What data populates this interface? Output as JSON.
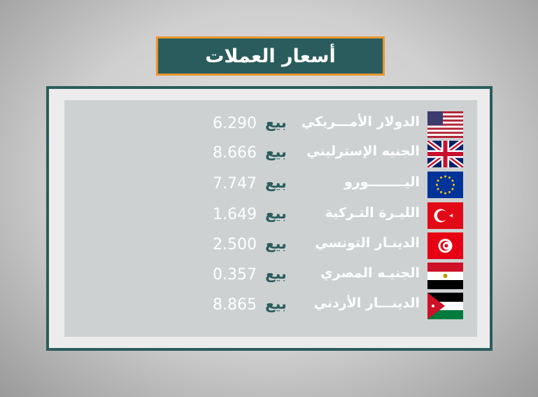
{
  "title": "أسعار العملات",
  "sell_label": "بيع",
  "colors": {
    "teal": "#2a5c5d",
    "orange": "#e9962e"
  },
  "currencies": [
    {
      "name": "الدولار الأمـــريكي",
      "value": "6.290",
      "flag": "us-flag"
    },
    {
      "name": "الجنيه الإسترليني",
      "value": "8.666",
      "flag": "uk-flag"
    },
    {
      "name": "اليــــــــورو",
      "value": "7.747",
      "flag": "eu-flag"
    },
    {
      "name": "الليـرة التـركية",
      "value": "1.649",
      "flag": "turkey-flag"
    },
    {
      "name": "الدينـار التونسي",
      "value": "2.500",
      "flag": "tunisia-flag"
    },
    {
      "name": "الجنيـه المصري",
      "value": "0.357",
      "flag": "egypt-flag"
    },
    {
      "name": "الدينـــار الأردني",
      "value": "8.865",
      "flag": "jordan-flag"
    }
  ]
}
